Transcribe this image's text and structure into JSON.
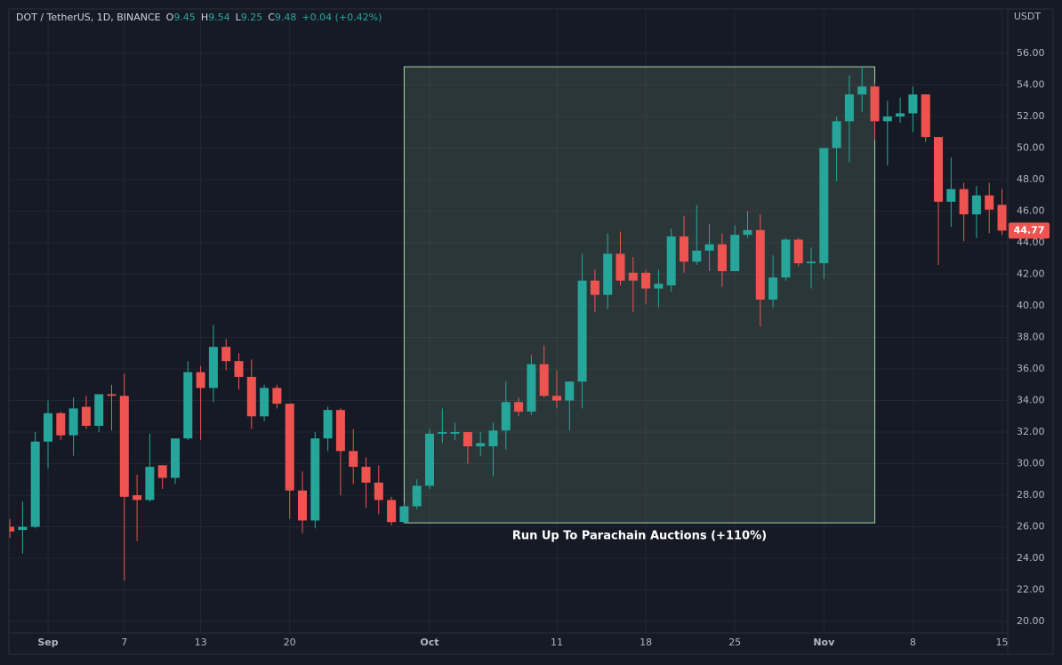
{
  "chart_data": {
    "type": "candlestick",
    "title": "DOT / TetherUS, 1D, BINANCE",
    "legend_values": [
      {
        "label": "O",
        "value": "9.45"
      },
      {
        "label": "H",
        "value": "9.54"
      },
      {
        "label": "L",
        "value": "9.25"
      },
      {
        "label": "C",
        "value": "9.48"
      }
    ],
    "change": "+0.04 (+0.42%)",
    "y_unit": "USDT",
    "up_color": "#26a69a",
    "down_color": "#ef5350",
    "grid": true,
    "categories": [
      null,
      null,
      null,
      "Sep",
      null,
      null,
      null,
      null,
      null,
      "7",
      null,
      null,
      null,
      null,
      null,
      "13",
      null,
      null,
      null,
      null,
      null,
      null,
      "20",
      null,
      null,
      null,
      null,
      null,
      null,
      null,
      null,
      null,
      null,
      "Oct",
      null,
      null,
      null,
      null,
      null,
      null,
      null,
      null,
      null,
      "11",
      null,
      null,
      null,
      null,
      null,
      null,
      "18",
      null,
      null,
      null,
      null,
      null,
      null,
      "25",
      null,
      null,
      null,
      null,
      null,
      null,
      "Nov",
      null,
      null,
      null,
      null,
      null,
      null,
      "8",
      null,
      null,
      null,
      null,
      null,
      null,
      "15"
    ],
    "open": [
      26.0,
      25.8,
      26.0,
      31.4,
      33.2,
      31.8,
      33.6,
      32.4,
      34.4,
      34.3,
      28.0,
      27.7,
      29.9,
      29.1,
      31.6,
      35.8,
      34.8,
      37.4,
      36.5,
      35.5,
      33.0,
      34.8,
      33.8,
      28.3,
      26.4,
      31.6,
      33.4,
      30.8,
      29.8,
      28.8,
      27.7,
      26.3,
      27.3,
      28.6,
      31.9,
      31.9,
      32.0,
      31.1,
      31.1,
      32.1,
      33.9,
      33.3,
      36.3,
      34.3,
      34.0,
      35.2,
      41.6,
      40.7,
      43.3,
      42.1,
      42.1,
      41.1,
      41.3,
      44.4,
      42.8,
      43.5,
      43.9,
      42.2,
      44.5,
      44.8,
      40.4,
      41.8,
      44.2,
      42.7,
      42.7,
      50.0,
      51.7,
      53.4,
      53.9,
      51.7,
      52.0,
      52.2,
      53.4,
      50.7,
      46.6,
      47.4,
      45.8,
      47.0,
      46.4
    ],
    "high": [
      26.5,
      27.6,
      32.0,
      34.0,
      33.3,
      34.2,
      34.3,
      34.4,
      35.0,
      35.7,
      29.3,
      31.9,
      29.9,
      31.6,
      36.5,
      36.2,
      38.8,
      37.9,
      37.0,
      36.6,
      35.0,
      35.0,
      33.8,
      29.5,
      32.0,
      33.6,
      33.5,
      32.2,
      30.4,
      29.9,
      27.9,
      27.5,
      29.0,
      32.2,
      33.5,
      32.6,
      32.0,
      32.0,
      32.6,
      35.2,
      34.2,
      36.9,
      37.5,
      35.9,
      35.2,
      43.3,
      42.3,
      44.6,
      44.7,
      43.1,
      42.3,
      42.3,
      44.9,
      45.7,
      46.4,
      45.2,
      44.6,
      45.1,
      46.0,
      45.8,
      43.2,
      44.3,
      44.3,
      43.7,
      50.0,
      52.0,
      54.6,
      55.2,
      54.1,
      53.0,
      53.2,
      53.9,
      53.4,
      50.7,
      49.4,
      47.8,
      47.6,
      47.8,
      47.4
    ],
    "low": [
      25.3,
      24.3,
      25.9,
      29.7,
      31.5,
      30.5,
      32.2,
      32.0,
      32.1,
      22.6,
      25.1,
      27.6,
      28.4,
      28.7,
      31.5,
      31.5,
      33.9,
      35.9,
      34.7,
      32.2,
      32.7,
      33.5,
      26.5,
      25.6,
      25.9,
      30.8,
      28.0,
      28.7,
      27.2,
      26.8,
      26.1,
      26.2,
      27.1,
      28.4,
      31.3,
      31.5,
      30.0,
      30.5,
      29.2,
      30.9,
      33.0,
      33.1,
      34.2,
      33.5,
      32.1,
      33.5,
      39.6,
      39.8,
      41.3,
      39.6,
      40.1,
      39.9,
      40.9,
      42.1,
      42.6,
      42.2,
      41.2,
      42.2,
      44.3,
      38.7,
      39.9,
      41.6,
      42.5,
      41.1,
      41.7,
      47.9,
      49.1,
      52.3,
      50.5,
      48.9,
      51.6,
      51.0,
      50.4,
      42.6,
      45.0,
      44.1,
      44.3,
      44.6,
      44.5
    ],
    "close": [
      25.7,
      26.0,
      31.4,
      33.2,
      31.8,
      33.5,
      32.4,
      34.4,
      34.3,
      27.9,
      27.7,
      29.8,
      29.1,
      31.6,
      35.8,
      34.8,
      37.4,
      36.5,
      35.5,
      33.0,
      34.8,
      33.8,
      28.3,
      26.4,
      31.6,
      33.4,
      30.8,
      29.8,
      28.8,
      27.7,
      26.3,
      27.3,
      28.6,
      31.9,
      32.0,
      32.0,
      31.1,
      31.3,
      32.1,
      33.9,
      33.3,
      36.3,
      34.3,
      34.0,
      35.2,
      41.6,
      40.7,
      43.3,
      41.6,
      41.6,
      41.1,
      41.4,
      44.4,
      42.8,
      43.5,
      43.9,
      42.2,
      44.5,
      44.8,
      40.4,
      41.8,
      44.2,
      42.7,
      42.8,
      50.0,
      51.7,
      53.4,
      53.9,
      51.7,
      52.0,
      52.2,
      53.4,
      50.7,
      46.6,
      47.4,
      45.8,
      47.0,
      46.1,
      44.77
    ],
    "ylim": [
      19.27,
      58.82
    ],
    "yticks": [
      {
        "value": 20,
        "label": "20.00"
      },
      {
        "value": 22,
        "label": "22.00"
      },
      {
        "value": 24,
        "label": "24.00"
      },
      {
        "value": 26,
        "label": "26.00"
      },
      {
        "value": 28,
        "label": "28.00"
      },
      {
        "value": 30,
        "label": "30.00"
      },
      {
        "value": 32,
        "label": "32.00"
      },
      {
        "value": 34,
        "label": "34.00"
      },
      {
        "value": 36,
        "label": "36.00"
      },
      {
        "value": 38,
        "label": "38.00"
      },
      {
        "value": 40,
        "label": "40.00"
      },
      {
        "value": 42,
        "label": "42.00"
      },
      {
        "value": 44,
        "label": "44.00"
      },
      {
        "value": 46,
        "label": "46.00"
      },
      {
        "value": 48,
        "label": "48.00"
      },
      {
        "value": 50,
        "label": "50.00"
      },
      {
        "value": 52,
        "label": "52.00"
      },
      {
        "value": 54,
        "label": "54.00"
      },
      {
        "value": 56,
        "label": "56.00"
      }
    ],
    "annotation": {
      "text": "Run Up To Parachain Auctions (+110%)",
      "x": [
        31,
        68
      ],
      "y": [
        26.25,
        55.15
      ],
      "color": "#a5d6a7"
    }
  }
}
